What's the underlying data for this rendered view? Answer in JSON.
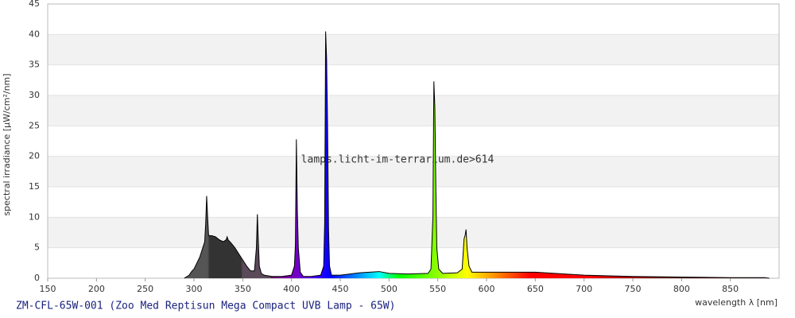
{
  "chart_data": {
    "type": "area",
    "title": "ZM-CFL-65W-001 (Zoo Med Reptisun Mega Compact UVB Lamp - 65W)",
    "watermark": "lamps.licht-im-terrarium.de>614",
    "x_label": "wavelength λ [nm]",
    "y_label": "spectral irradiance [µW/cm²/nm]",
    "xlim": [
      150,
      900
    ],
    "ylim": [
      0,
      45
    ],
    "xticks": [
      150,
      200,
      250,
      300,
      350,
      400,
      450,
      500,
      550,
      600,
      650,
      700,
      750,
      800,
      850
    ],
    "yticks": [
      0,
      5,
      10,
      15,
      20,
      25,
      30,
      35,
      40,
      45
    ],
    "grid": true,
    "x": [
      290,
      295,
      298,
      300,
      303,
      306,
      309,
      311,
      312,
      313,
      314,
      315,
      318,
      322,
      326,
      330,
      333,
      334,
      335,
      338,
      342,
      346,
      350,
      354,
      358,
      362,
      364,
      365,
      366,
      367,
      369,
      372,
      380,
      390,
      400,
      403,
      404,
      405,
      406,
      407,
      408,
      409,
      412,
      420,
      430,
      433,
      434,
      435,
      436,
      437,
      438,
      439,
      441,
      450,
      460,
      470,
      490,
      500,
      520,
      540,
      543,
      545,
      546,
      547,
      548,
      549,
      551,
      555,
      570,
      575,
      577,
      578,
      579,
      580,
      582,
      585,
      600,
      620,
      650,
      680,
      700,
      750,
      800,
      850,
      885,
      890
    ],
    "values": [
      0,
      0.5,
      1.2,
      1.5,
      2.5,
      3.5,
      5,
      6,
      9,
      13.5,
      10,
      7,
      7,
      6.8,
      6.3,
      6,
      6.3,
      6.8,
      6.3,
      5.8,
      5,
      4,
      3,
      2,
      1.2,
      1.2,
      5,
      10.5,
      6,
      2,
      0.8,
      0.5,
      0.3,
      0.3,
      0.5,
      2,
      5.5,
      22.8,
      11,
      5,
      3,
      1,
      0.3,
      0.3,
      0.5,
      2,
      9,
      40.5,
      36,
      25,
      8,
      2,
      0.5,
      0.5,
      0.7,
      0.9,
      1.1,
      0.8,
      0.7,
      0.8,
      1.5,
      10,
      32.3,
      28,
      15,
      5,
      1.5,
      0.8,
      0.9,
      1.5,
      6.5,
      7,
      8,
      5,
      2,
      1,
      1,
      1,
      1,
      0.7,
      0.5,
      0.3,
      0.2,
      0.1,
      0.1,
      0
    ]
  }
}
